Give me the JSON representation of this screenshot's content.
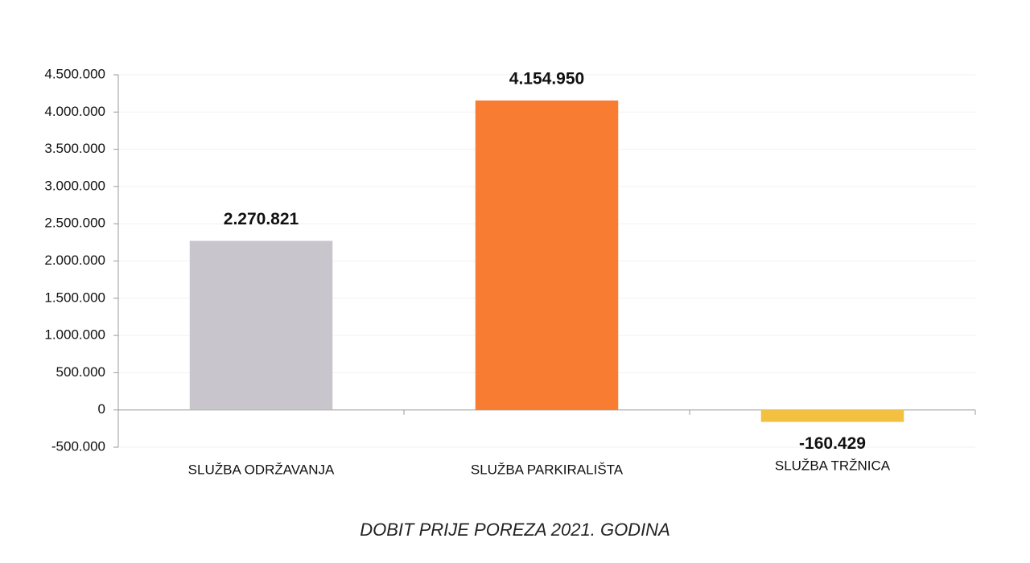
{
  "chart_data": {
    "type": "bar",
    "title": "DOBIT PRIJE POREZA 2021. GODINA",
    "categories": [
      "SLUŽBA ODRŽAVANJA",
      "SLUŽBA PARKIRALIŠTA",
      "SLUŽBA TRŽNICA"
    ],
    "values": [
      2270821,
      4154950,
      -160429
    ],
    "value_labels": [
      "2.270.821",
      "4.154.950",
      "-160.429"
    ],
    "colors": [
      "#c9c5cc",
      "#f97c33",
      "#f3c13f"
    ],
    "ylim": [
      -500000,
      4500000
    ],
    "yticks": [
      {
        "value": -500000,
        "label": "-500.000"
      },
      0,
      {
        "value": 500000,
        "label": "500.000"
      },
      {
        "value": 1000000,
        "label": "1.000.000"
      },
      {
        "value": 1500000,
        "label": "1.500.000"
      },
      {
        "value": 2000000,
        "label": "2.000.000"
      },
      {
        "value": 2500000,
        "label": "2.500.000"
      },
      {
        "value": 3000000,
        "label": "3.000.000"
      },
      {
        "value": 3500000,
        "label": "3.500.000"
      },
      {
        "value": 4000000,
        "label": "4.000.000"
      },
      {
        "value": 4500000,
        "label": "4.500.000"
      }
    ],
    "grid": true
  }
}
